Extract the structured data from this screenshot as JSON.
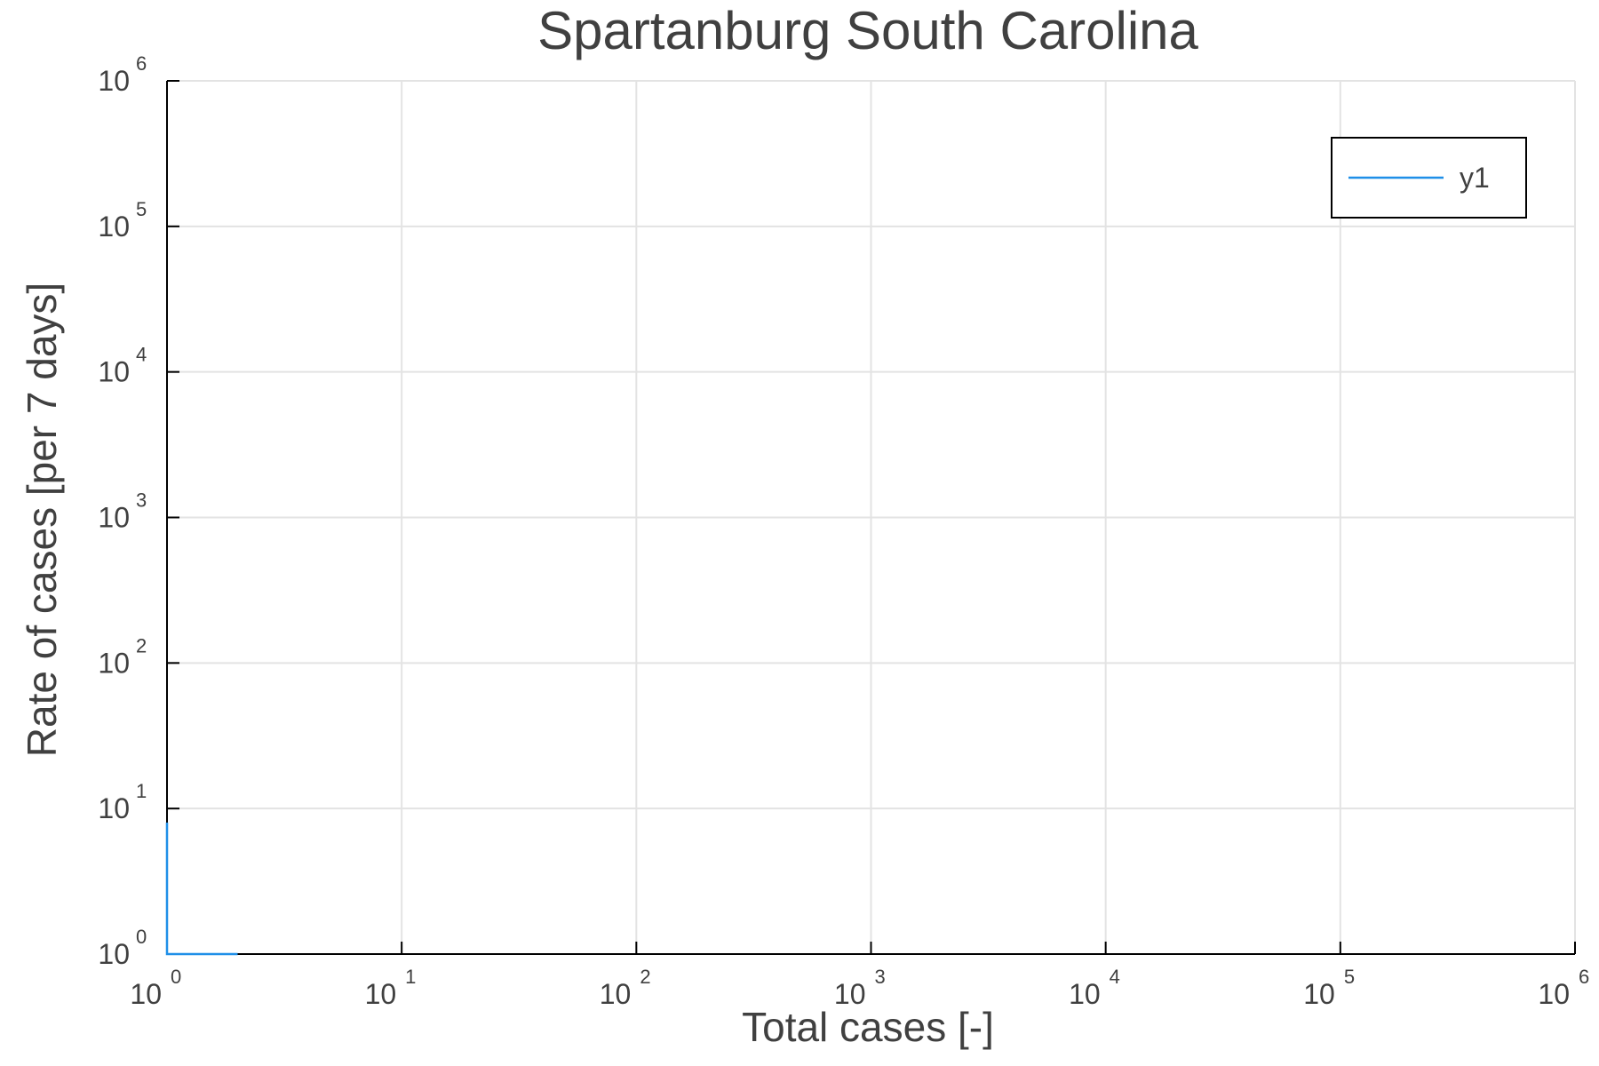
{
  "chart_data": {
    "type": "line",
    "title": "Spartanburg South Carolina",
    "xlabel": "Total cases [-]",
    "ylabel": "Rate of cases [per 7 days]",
    "xscale": "log",
    "yscale": "log",
    "xlim": [
      1,
      1000000
    ],
    "ylim": [
      1,
      1000000
    ],
    "x_ticks": [
      {
        "base": "10",
        "exp": "0",
        "value": 1
      },
      {
        "base": "10",
        "exp": "1",
        "value": 10
      },
      {
        "base": "10",
        "exp": "2",
        "value": 100
      },
      {
        "base": "10",
        "exp": "3",
        "value": 1000
      },
      {
        "base": "10",
        "exp": "4",
        "value": 10000
      },
      {
        "base": "10",
        "exp": "5",
        "value": 100000
      },
      {
        "base": "10",
        "exp": "6",
        "value": 1000000
      }
    ],
    "y_ticks": [
      {
        "base": "10",
        "exp": "0",
        "value": 1
      },
      {
        "base": "10",
        "exp": "1",
        "value": 10
      },
      {
        "base": "10",
        "exp": "2",
        "value": 100
      },
      {
        "base": "10",
        "exp": "3",
        "value": 1000
      },
      {
        "base": "10",
        "exp": "4",
        "value": 10000
      },
      {
        "base": "10",
        "exp": "5",
        "value": 100000
      },
      {
        "base": "10",
        "exp": "6",
        "value": 1000000
      }
    ],
    "grid": true,
    "legend_position": "top-right",
    "series": [
      {
        "name": "y1",
        "color": "#1f8fe8",
        "x": [
          1,
          1,
          2
        ],
        "y": [
          8,
          1,
          1
        ]
      }
    ]
  }
}
